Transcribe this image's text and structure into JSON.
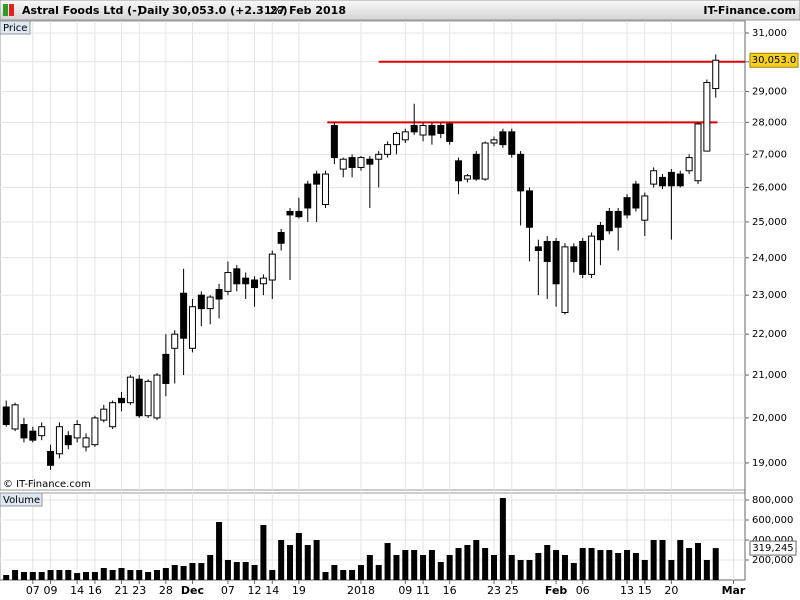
{
  "chart_data": [
    {
      "type": "candlestick",
      "title": "Astral Foods Ltd (-)",
      "period": "Daily",
      "last": "30,053.0 (+2.31%)",
      "date": "27 Feb 2018",
      "source": "IT-Finance.com",
      "panel_label": "Price",
      "copyright": "© IT-Finance.com",
      "log_scale": true,
      "grid": true,
      "xlim": [
        -0.7,
        83.3
      ],
      "ylim": [
        18424,
        31426
      ],
      "yticks": [
        {
          "value": 31000,
          "label": "31,000"
        },
        {
          "value": 30000,
          "label": "30,000"
        },
        {
          "value": 29000,
          "label": "29,000"
        },
        {
          "value": 28000,
          "label": "28,000"
        },
        {
          "value": 27000,
          "label": "27,000"
        },
        {
          "value": 26000,
          "label": "26,000"
        },
        {
          "value": 25000,
          "label": "25,000"
        },
        {
          "value": 24000,
          "label": "24,000"
        },
        {
          "value": 23000,
          "label": "23,000"
        },
        {
          "value": 22000,
          "label": "22,000"
        },
        {
          "value": 21000,
          "label": "21,000"
        },
        {
          "value": 20000,
          "label": "20,000"
        },
        {
          "value": 19000,
          "label": "19,000"
        }
      ],
      "last_price": {
        "value": 30053,
        "label": "30,053.0",
        "color": "#f5d020"
      },
      "lines": [
        {
          "value": 30000,
          "x": [
            42,
            83.3
          ],
          "color": "#e00000"
        },
        {
          "value": 28000,
          "x": [
            36.2,
            80.2
          ],
          "color": "#e00000"
        }
      ],
      "open": [
        20250,
        19750,
        19850,
        19700,
        19600,
        19250,
        19200,
        19600,
        19550,
        19350,
        19400,
        19950,
        19800,
        20450,
        20350,
        20900,
        20050,
        20000,
        21500,
        21650,
        23050,
        21650,
        23000,
        22650,
        23150,
        23100,
        23700,
        23450,
        23400,
        23300,
        23400,
        24700,
        25300,
        25300,
        26100,
        26400,
        25500,
        27900,
        26550,
        26900,
        26600,
        26850,
        26850,
        27000,
        27300,
        27450,
        27900,
        27600,
        27900,
        27900,
        27950,
        26800,
        26250,
        27000,
        26250,
        27350,
        27700,
        27700,
        27000,
        25900,
        24300,
        24450,
        24450,
        22550,
        24300,
        24450,
        23550,
        24900,
        25300,
        25300,
        25700,
        26100,
        25050,
        26100,
        26300,
        26450,
        26400,
        26500,
        26200,
        27100,
        29100
      ],
      "high": [
        20400,
        20350,
        20000,
        19800,
        19900,
        19400,
        19900,
        19700,
        19950,
        19650,
        20050,
        20300,
        20400,
        20600,
        21000,
        21000,
        20900,
        21050,
        22000,
        22100,
        23700,
        22900,
        23100,
        23000,
        23300,
        23900,
        23800,
        23600,
        23500,
        23550,
        24200,
        24800,
        25400,
        25700,
        26200,
        26500,
        26500,
        28000,
        26900,
        27000,
        26950,
        26950,
        27100,
        27400,
        27700,
        27800,
        28600,
        28000,
        28000,
        28000,
        28000,
        26900,
        26400,
        27100,
        27400,
        27550,
        27800,
        27800,
        27100,
        26000,
        24500,
        24600,
        24550,
        24400,
        24400,
        24550,
        24700,
        25000,
        25400,
        25400,
        25800,
        26200,
        25850,
        26600,
        26400,
        26550,
        26500,
        27000,
        28000,
        29400,
        30250
      ],
      "low": [
        19800,
        19700,
        19450,
        19450,
        19500,
        18850,
        19100,
        19300,
        19450,
        19250,
        19350,
        19900,
        19750,
        20150,
        20300,
        20000,
        20000,
        19950,
        20500,
        20800,
        21000,
        21550,
        22200,
        22250,
        22400,
        23000,
        23100,
        22900,
        22700,
        23000,
        22900,
        24200,
        23400,
        25100,
        25000,
        25000,
        25400,
        26700,
        26300,
        26300,
        26500,
        25400,
        26000,
        26900,
        27000,
        27350,
        27600,
        27400,
        27300,
        27500,
        27300,
        25800,
        26150,
        26200,
        26200,
        27250,
        27200,
        26900,
        24900,
        23900,
        23000,
        22900,
        22700,
        22500,
        23600,
        23450,
        23450,
        23800,
        24650,
        24200,
        25100,
        25300,
        24600,
        26000,
        25950,
        24500,
        26000,
        26400,
        26100,
        27100,
        28800
      ],
      "close": [
        19850,
        20300,
        19550,
        19500,
        19800,
        18950,
        19800,
        19400,
        19850,
        19550,
        20000,
        20200,
        20350,
        20350,
        20950,
        20050,
        20850,
        21000,
        20800,
        22000,
        21900,
        22700,
        22650,
        22950,
        22900,
        23600,
        23300,
        23300,
        23200,
        23450,
        24100,
        24400,
        25200,
        25150,
        25400,
        26100,
        26400,
        26900,
        26850,
        26600,
        26900,
        26700,
        27000,
        27300,
        27650,
        27700,
        27700,
        27900,
        27600,
        27650,
        27400,
        26200,
        26350,
        26250,
        27350,
        27450,
        27300,
        27000,
        25900,
        24850,
        24200,
        23900,
        23300,
        24300,
        23900,
        23550,
        24600,
        24500,
        24750,
        24850,
        25200,
        25400,
        25750,
        26500,
        26050,
        26050,
        26050,
        26900,
        27950,
        29300,
        30053
      ],
      "up_color": "#ffffff",
      "down_color": "#000000"
    },
    {
      "type": "bar",
      "panel_label": "Volume",
      "grid": true,
      "color": "#000000",
      "xlim": [
        -0.7,
        83.3
      ],
      "ylim": [
        0,
        870000
      ],
      "yticks": [
        {
          "value": 200000,
          "label": "200,000"
        },
        {
          "value": 400000,
          "label": "400,000"
        },
        {
          "value": 600000,
          "label": "600,000"
        },
        {
          "value": 800000,
          "label": "800,000"
        }
      ],
      "last_volume": {
        "value": 319245,
        "label": "319,245"
      },
      "xticks": [
        {
          "value": 3,
          "label": "07"
        },
        {
          "value": 5,
          "label": "09"
        },
        {
          "value": 8,
          "label": "14"
        },
        {
          "value": 10,
          "label": "16"
        },
        {
          "value": 13,
          "label": "21"
        },
        {
          "value": 15,
          "label": "23"
        },
        {
          "value": 18,
          "label": "28"
        },
        {
          "value": 21,
          "label": "Dec"
        },
        {
          "value": 25,
          "label": "07"
        },
        {
          "value": 28,
          "label": "12"
        },
        {
          "value": 30,
          "label": "14"
        },
        {
          "value": 33,
          "label": "19"
        },
        {
          "value": 40,
          "label": "2018"
        },
        {
          "value": 45,
          "label": "09"
        },
        {
          "value": 47,
          "label": "11"
        },
        {
          "value": 50,
          "label": "16"
        },
        {
          "value": 55,
          "label": "23"
        },
        {
          "value": 57,
          "label": "25"
        },
        {
          "value": 62,
          "label": "Feb"
        },
        {
          "value": 65,
          "label": "06"
        },
        {
          "value": 70,
          "label": "13"
        },
        {
          "value": 72,
          "label": "15"
        },
        {
          "value": 75,
          "label": "20"
        },
        {
          "value": 82,
          "label": "Mar"
        }
      ],
      "values": [
        50000,
        100000,
        80000,
        80000,
        80000,
        100000,
        100000,
        100000,
        70000,
        80000,
        80000,
        120000,
        100000,
        120000,
        100000,
        100000,
        80000,
        100000,
        120000,
        150000,
        140000,
        170000,
        170000,
        250000,
        580000,
        200000,
        180000,
        180000,
        150000,
        550000,
        100000,
        400000,
        350000,
        470000,
        350000,
        400000,
        80000,
        150000,
        100000,
        100000,
        150000,
        250000,
        150000,
        370000,
        250000,
        300000,
        300000,
        250000,
        300000,
        180000,
        250000,
        320000,
        350000,
        400000,
        320000,
        250000,
        820000,
        250000,
        200000,
        200000,
        270000,
        350000,
        300000,
        250000,
        170000,
        320000,
        320000,
        300000,
        300000,
        270000,
        300000,
        270000,
        200000,
        400000,
        400000,
        200000,
        400000,
        320000,
        370000,
        200000,
        319245
      ]
    }
  ]
}
